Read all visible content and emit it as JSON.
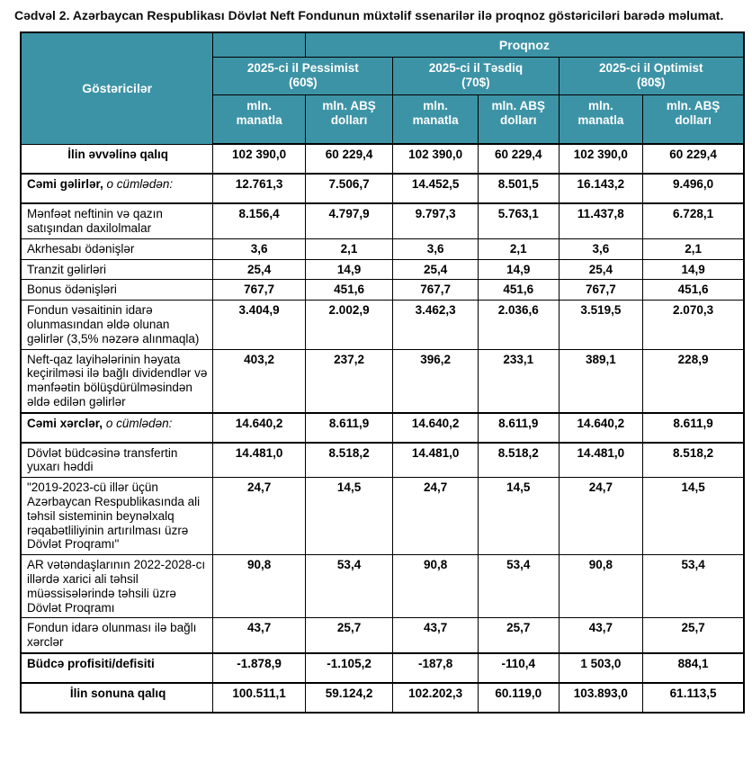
{
  "title": "Cədvəl 2. Azərbaycan Respublikası Dövlət Neft Fondunun müxtəlif ssenarilər ilə proqnoz göstəriciləri barədə məlumat.",
  "colors": {
    "header_bg": "#3C93A6",
    "header_text": "#FFFFFF",
    "border": "#000000",
    "body_bg": "#FFFFFF"
  },
  "table": {
    "corner": "Göstəricilər",
    "group": "Proqnoz",
    "scenarios": [
      "2025-ci il Pessimist\n(60$)",
      "2025-ci il Təsdiq\n(70$)",
      "2025-ci il Optimist\n(80$)"
    ],
    "units": [
      "mln.\nmanatla",
      "mln. ABŞ\ndolları",
      "mln.\nmanatla",
      "mln. ABŞ\ndolları",
      "mln.\nmanatla",
      "mln. ABŞ\ndolları"
    ],
    "rows": [
      {
        "label": "İlin əvvəlinə qalıq",
        "align": "center",
        "bold": true,
        "tall": true,
        "values": [
          "102 390,0",
          "60 229,4",
          "102 390,0",
          "60 229,4",
          "102 390,0",
          "60 229,4"
        ]
      },
      {
        "label": "Cəmi gəlirlər,",
        "label_italic": " o cümlədən:",
        "align": "left",
        "bold": true,
        "tall": true,
        "thick_top": true,
        "values": [
          "12.761,3",
          "7.506,7",
          "14.452,5",
          "8.501,5",
          "16.143,2",
          "9.496,0"
        ]
      },
      {
        "label": "Mənfəət neftinin və qazın satışından daxilolmalar",
        "align": "left",
        "bold": false,
        "tall": true,
        "thick_top": true,
        "values": [
          "8.156,4",
          "4.797,9",
          "9.797,3",
          "5.763,1",
          "11.437,8",
          "6.728,1"
        ]
      },
      {
        "label": "Akrhesabı ödənişlər",
        "align": "left",
        "bold": false,
        "values": [
          "3,6",
          "2,1",
          "3,6",
          "2,1",
          "3,6",
          "2,1"
        ]
      },
      {
        "label": "Tranzit gəlirləri",
        "align": "left",
        "bold": false,
        "values": [
          "25,4",
          "14,9",
          "25,4",
          "14,9",
          "25,4",
          "14,9"
        ]
      },
      {
        "label": "Bonus ödənişləri",
        "align": "left",
        "bold": false,
        "values": [
          "767,7",
          "451,6",
          "767,7",
          "451,6",
          "767,7",
          "451,6"
        ]
      },
      {
        "label": "Fondun vəsaitinin idarə olunmasından əldə olunan gəlirlər (3,5% nəzərə alınmaqla)",
        "align": "left",
        "bold": false,
        "values": [
          "3.404,9",
          "2.002,9",
          "3.462,3",
          "2.036,6",
          "3.519,5",
          "2.070,3"
        ]
      },
      {
        "label": "Neft-qaz layihələrinin həyata keçirilməsi ilə bağlı dividendlər və mənfəətin bölüşdürülməsindən əldə edilən gəlirlər",
        "align": "left",
        "bold": false,
        "values": [
          "403,2",
          "237,2",
          "396,2",
          "233,1",
          "389,1",
          "228,9"
        ]
      },
      {
        "label": "Cəmi xərclər,",
        "label_italic": " o cümlədən:",
        "align": "left",
        "bold": true,
        "tall": true,
        "thick_top": true,
        "values": [
          "14.640,2",
          "8.611,9",
          "14.640,2",
          "8.611,9",
          "14.640,2",
          "8.611,9"
        ]
      },
      {
        "label": "Dövlət büdcəsinə transfertin yuxarı həddi",
        "align": "left",
        "bold": false,
        "thick_top": true,
        "values": [
          "14.481,0",
          "8.518,2",
          "14.481,0",
          "8.518,2",
          "14.481,0",
          "8.518,2"
        ]
      },
      {
        "label": "\"2019-2023-cü illər üçün Azərbaycan Respublikasında ali təhsil sisteminin beynəlxalq rəqabətliliyinin artırılması üzrə Dövlət Proqramı\"",
        "align": "left",
        "bold": false,
        "values": [
          "24,7",
          "14,5",
          "24,7",
          "14,5",
          "24,7",
          "14,5"
        ]
      },
      {
        "label": "AR vətəndaşlarının 2022-2028-cı illərdə xarici ali təhsil müəssisələrində təhsili üzrə Dövlət Proqramı",
        "align": "left",
        "bold": false,
        "values": [
          "90,8",
          "53,4",
          "90,8",
          "53,4",
          "90,8",
          "53,4"
        ]
      },
      {
        "label": "Fondun idarə olunması ilə bağlı xərclər",
        "align": "left",
        "bold": false,
        "values": [
          "43,7",
          "25,7",
          "43,7",
          "25,7",
          "43,7",
          "25,7"
        ]
      },
      {
        "label": "Büdcə profisiti/defisiti",
        "align": "left",
        "bold": true,
        "tall": true,
        "thick_top": true,
        "values": [
          "-1.878,9",
          "-1.105,2",
          "-187,8",
          "-110,4",
          "1 503,0",
          "884,1"
        ]
      },
      {
        "label": "İlin sonuna qalıq",
        "align": "center",
        "bold": true,
        "tall": true,
        "thick_top": true,
        "values": [
          "100.511,1",
          "59.124,2",
          "102.202,3",
          "60.119,0",
          "103.893,0",
          "61.113,5"
        ]
      }
    ]
  }
}
